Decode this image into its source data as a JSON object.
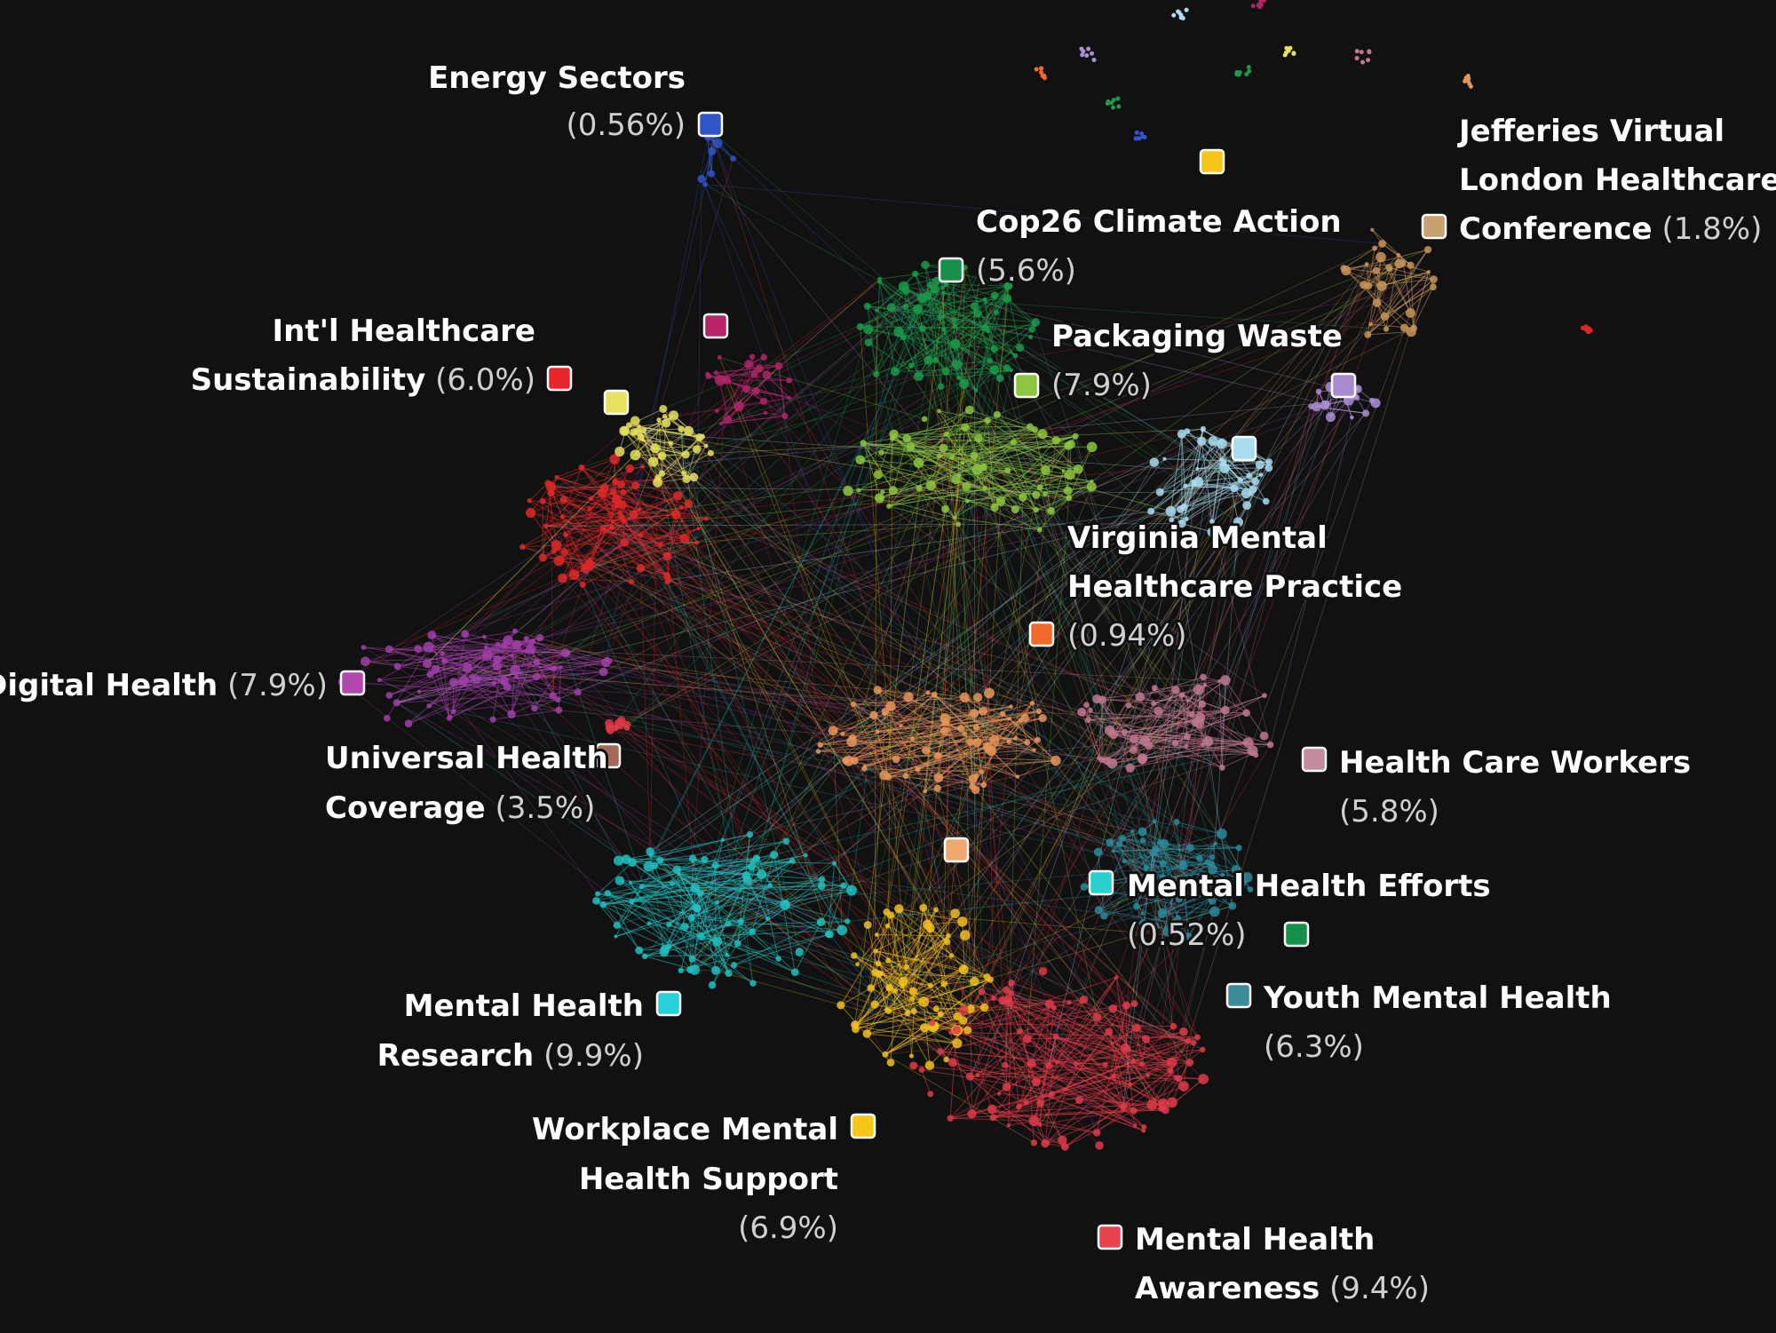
{
  "labels": [
    {
      "name_lines": [
        "Energy Sectors"
      ],
      "share": "(0.56%)"
    },
    {
      "name_lines": [
        "Cop26 Climate Action"
      ],
      "share": "(5.6%)"
    },
    {
      "name_lines": [
        "Jefferies Virtual",
        "London Healthcare",
        "Conference"
      ],
      "share": "(1.8%)"
    },
    {
      "name_lines": [
        "Int'l Healthcare",
        "Sustainability"
      ],
      "share": "(6.0%)"
    },
    {
      "name_lines": [
        "Packaging Waste"
      ],
      "share": "(7.9%)"
    },
    {
      "name_lines": [
        "Virginia Mental",
        "Healthcare Practice"
      ],
      "share": "(0.94%)"
    },
    {
      "name_lines": [
        "Digital Health"
      ],
      "share": "(7.9%)"
    },
    {
      "name_lines": [
        "Universal Health",
        "Coverage"
      ],
      "share": "(3.5%)"
    },
    {
      "name_lines": [
        "Health Care Workers"
      ],
      "share": "(5.8%)"
    },
    {
      "name_lines": [
        "Mental Health Efforts"
      ],
      "share": "(0.52%)"
    },
    {
      "name_lines": [
        "Youth Mental Health"
      ],
      "share": "(6.3%)"
    },
    {
      "name_lines": [
        "Mental Health",
        "Research"
      ],
      "share": "(9.9%)"
    },
    {
      "name_lines": [
        "Workplace Mental",
        "Health Support"
      ],
      "share": "(6.9%)"
    },
    {
      "name_lines": [
        "Mental Health",
        "Awareness"
      ],
      "share": "(9.4%)"
    }
  ]
}
